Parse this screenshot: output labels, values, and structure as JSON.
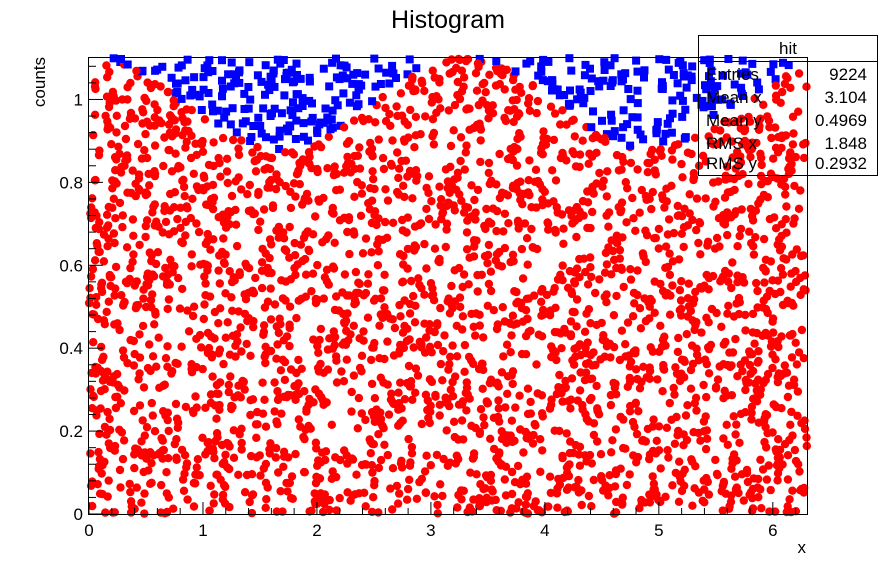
{
  "chart_data": {
    "type": "scatter",
    "title": "Histogram",
    "xlabel": "x",
    "ylabel": "counts",
    "xlim": [
      0,
      6.3
    ],
    "ylim": [
      0,
      1.1
    ],
    "x_ticks": [
      "0",
      "1",
      "2",
      "3",
      "4",
      "5",
      "6"
    ],
    "y_ticks": [
      "0",
      "0.2",
      "0.4",
      "0.6",
      "0.8",
      "1"
    ],
    "grid": false,
    "legend": "none",
    "series": [
      {
        "role": "below-curve",
        "color": "#ff0000",
        "marker": "circle",
        "region": "y <= (1 + sin(x)) / 2 scaled",
        "approx_points": 9224
      },
      {
        "role": "above-curve",
        "color": "#0000ff",
        "marker": "square",
        "region": "y > curve"
      }
    ],
    "stats_box": {
      "title": "hit",
      "rows": [
        {
          "label": "Entries",
          "value": "9224"
        },
        {
          "label": "Mean x",
          "value": "3.104"
        },
        {
          "label": "Mean y",
          "value": "0.4969"
        },
        {
          "label": "RMS x",
          "value": "1.848"
        },
        {
          "label": "RMS y",
          "value": "0.2932"
        }
      ]
    }
  }
}
